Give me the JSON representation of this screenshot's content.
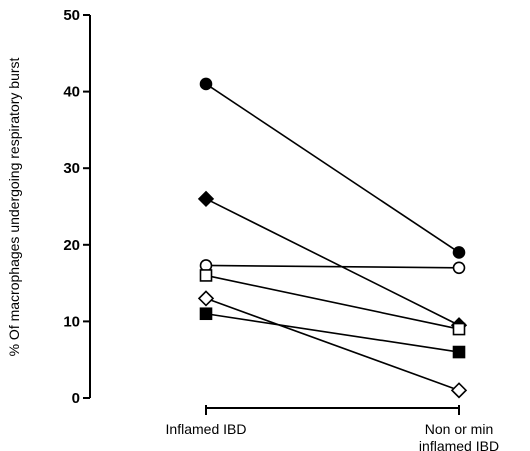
{
  "chart_data": {
    "type": "line",
    "title": "",
    "xlabel": "",
    "ylabel": "% Of macrophages undergoing respiratory burst",
    "categories": [
      "Inflamed IBD",
      [
        "Non or min",
        "inflamed IBD"
      ]
    ],
    "ylim": [
      0,
      50
    ],
    "yticks": [
      0,
      10,
      20,
      30,
      40,
      50
    ],
    "grid": false,
    "legend": "none",
    "series": [
      {
        "marker": "filled-circle",
        "values": [
          41,
          19
        ]
      },
      {
        "marker": "filled-diamond",
        "values": [
          26,
          9.5
        ]
      },
      {
        "marker": "open-circle",
        "values": [
          17.3,
          17
        ]
      },
      {
        "marker": "open-square",
        "values": [
          16,
          9
        ]
      },
      {
        "marker": "open-diamond",
        "values": [
          13,
          1
        ]
      },
      {
        "marker": "filled-square",
        "values": [
          11,
          6
        ]
      }
    ],
    "colors": {
      "ink": "#000000",
      "background": "#ffffff"
    }
  }
}
